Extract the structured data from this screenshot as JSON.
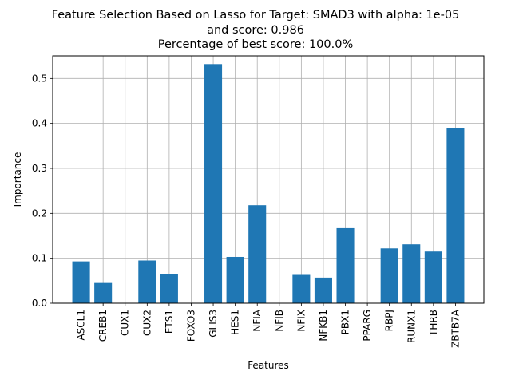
{
  "chart_data": {
    "type": "bar",
    "title_lines": [
      "Feature Selection Based on Lasso for Target: SMAD3 with alpha: 1e-05",
      "and score: 0.986",
      "Percentage of best score: 100.0%"
    ],
    "xlabel": "Features",
    "ylabel": "Importance",
    "categories": [
      "ASCL1",
      "CREB1",
      "CUX1",
      "CUX2",
      "ETS1",
      "FOXO3",
      "GLIS3",
      "HES1",
      "NFIA",
      "NFIB",
      "NFIX",
      "NFKB1",
      "PBX1",
      "PPARG",
      "RBPJ",
      "RUNX1",
      "THRB",
      "ZBTB7A"
    ],
    "values": [
      0.093,
      0.045,
      0.0,
      0.095,
      0.065,
      0.0,
      0.532,
      0.103,
      0.218,
      0.0,
      0.063,
      0.057,
      0.167,
      0.0,
      0.122,
      0.131,
      0.115,
      0.389
    ],
    "ylim": [
      0,
      0.5503
    ],
    "yticks": [
      0.0,
      0.1,
      0.2,
      0.3,
      0.4,
      0.5
    ],
    "ytick_labels": [
      "0.0",
      "0.1",
      "0.2",
      "0.3",
      "0.4",
      "0.5"
    ],
    "grid": true,
    "bar_color": "#1f77b4",
    "grid_color": "#b0b0b0"
  }
}
